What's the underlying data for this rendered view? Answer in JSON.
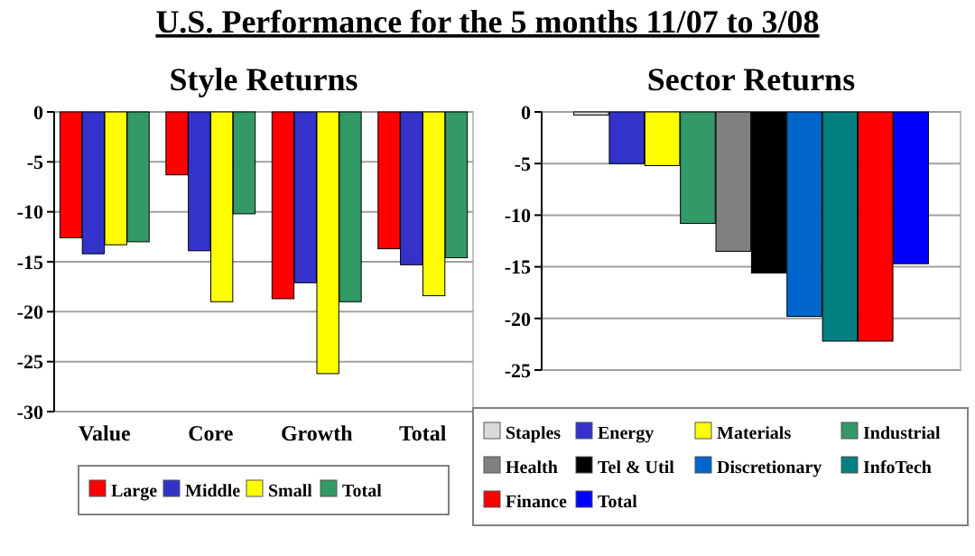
{
  "chart_data": [
    {
      "type": "bar",
      "title": "Style Returns",
      "annotations": [
        "U.S. Performance for the 5 months 11/07 to 3/08"
      ],
      "categories": [
        "Value",
        "Core",
        "Growth",
        "Total"
      ],
      "series": [
        {
          "name": "Large",
          "color": "#ff0000",
          "values": [
            -12.6,
            -6.3,
            -18.7,
            -13.7
          ]
        },
        {
          "name": "Middle",
          "color": "#3333cc",
          "values": [
            -14.2,
            -13.9,
            -17.1,
            -15.3
          ]
        },
        {
          "name": "Small",
          "color": "#ffff00",
          "values": [
            -13.3,
            -19.0,
            -26.2,
            -18.4
          ]
        },
        {
          "name": "Total",
          "color": "#339966",
          "values": [
            -13.0,
            -10.2,
            -19.0,
            -14.6
          ]
        }
      ],
      "ylim": [
        -30,
        0
      ],
      "yticks": [
        -30,
        -25,
        -20,
        -15,
        -10,
        -5,
        0
      ],
      "grid": "y",
      "legend": "bottom"
    },
    {
      "type": "bar",
      "title": "Sector Returns",
      "categories": [
        null
      ],
      "series": [
        {
          "name": "Staples",
          "color": "#d9d9d9",
          "values": [
            -0.3
          ]
        },
        {
          "name": "Energy",
          "color": "#3333cc",
          "values": [
            -5.0
          ]
        },
        {
          "name": "Materials",
          "color": "#ffff00",
          "values": [
            -5.2
          ]
        },
        {
          "name": "Industrial",
          "color": "#339966",
          "values": [
            -10.8
          ]
        },
        {
          "name": "Health",
          "color": "#808080",
          "values": [
            -13.5
          ]
        },
        {
          "name": "Tel & Util",
          "color": "#000000",
          "values": [
            -15.6
          ]
        },
        {
          "name": "Discretionary",
          "color": "#0066cc",
          "values": [
            -19.8
          ]
        },
        {
          "name": "InfoTech",
          "color": "#008080",
          "values": [
            -22.2
          ]
        },
        {
          "name": "Finance",
          "color": "#ff0000",
          "values": [
            -22.2
          ]
        },
        {
          "name": "Total",
          "color": "#0000ff",
          "values": [
            -14.7
          ]
        }
      ],
      "ylim": [
        -25,
        0
      ],
      "yticks": [
        -25,
        -20,
        -15,
        -10,
        -5,
        0
      ],
      "grid": "y",
      "legend": "bottom"
    }
  ]
}
